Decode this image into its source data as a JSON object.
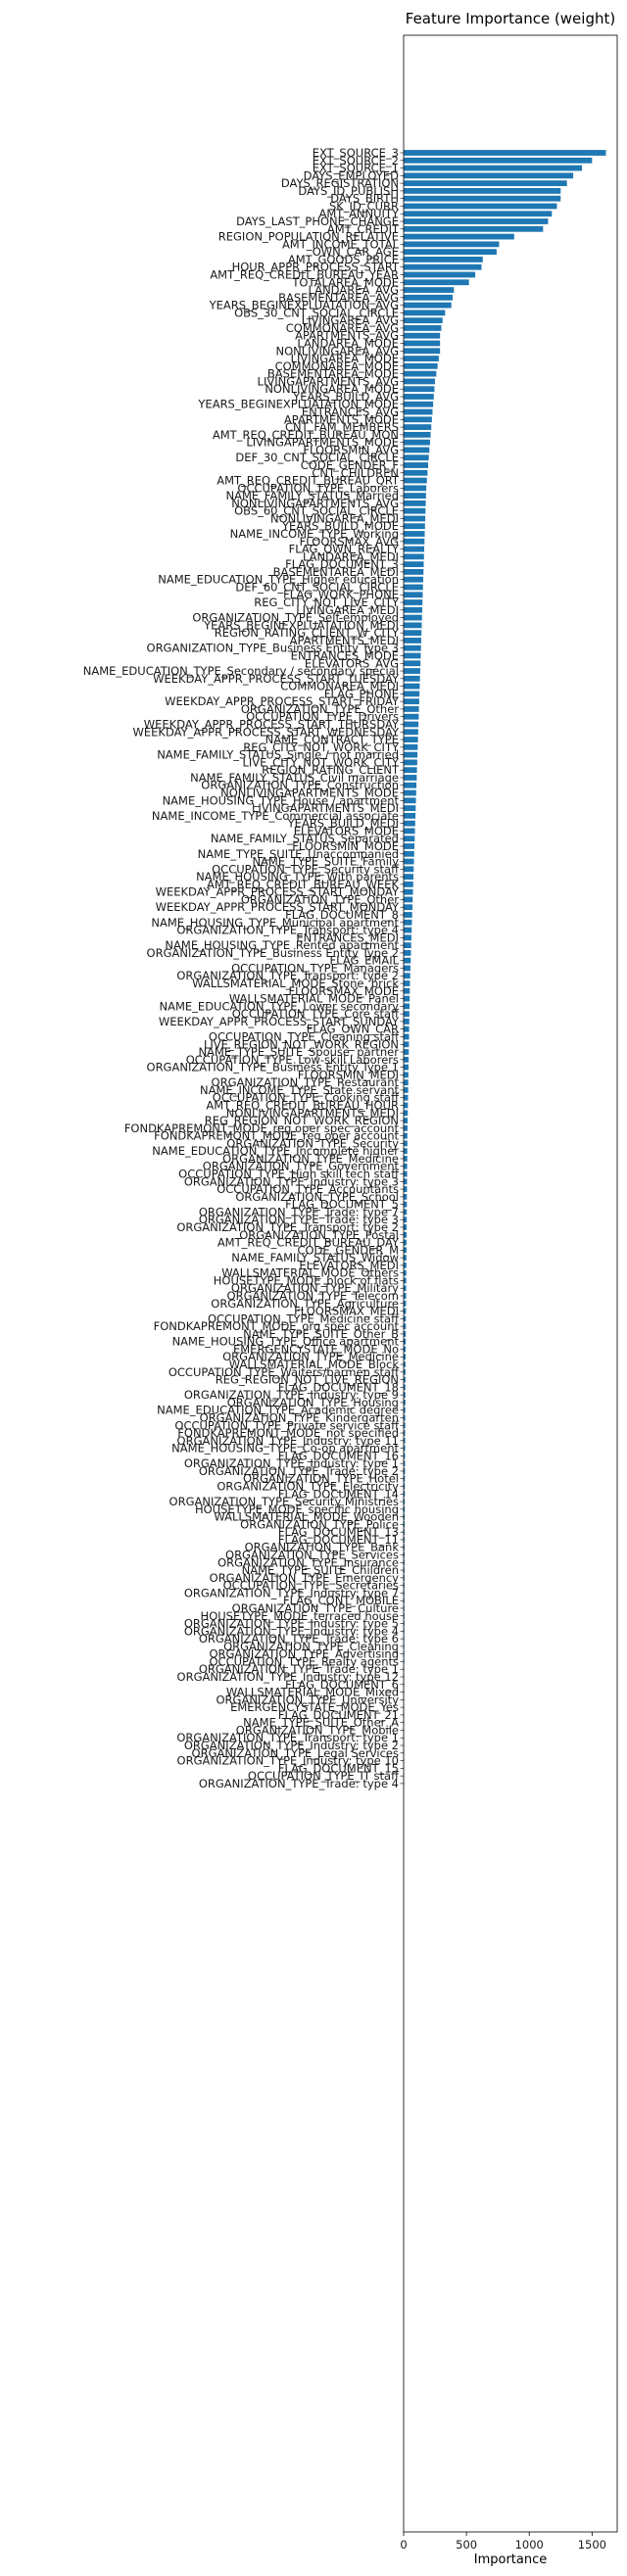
{
  "chart_data": {
    "type": "bar",
    "orientation": "horizontal",
    "title": "Feature Importance (weight)",
    "xlabel": "Importance",
    "ylabel": "",
    "xlim": [
      0,
      1700
    ],
    "xticks": [
      0,
      500,
      1000,
      1500
    ],
    "grid": false,
    "legend": "none",
    "bar_color": "#1f77b4",
    "categories": [
      "EXT_SOURCE_3",
      "EXT_SOURCE_2",
      "EXT_SOURCE_1",
      "DAYS_EMPLOYED",
      "DAYS_REGISTRATION",
      "DAYS_ID_PUBLISH",
      "DAYS_BIRTH",
      "SK_ID_CURR",
      "AMT_ANNUITY",
      "DAYS_LAST_PHONE_CHANGE",
      "AMT_CREDIT",
      "REGION_POPULATION_RELATIVE",
      "AMT_INCOME_TOTAL",
      "OWN_CAR_AGE",
      "AMT_GOODS_PRICE",
      "HOUR_APPR_PROCESS_START",
      "AMT_REQ_CREDIT_BUREAU_YEAR",
      "TOTALAREA_MODE",
      "LANDAREA_AVG",
      "BASEMENTAREA_AVG",
      "YEARS_BEGINEXPLUATATION_AVG",
      "OBS_30_CNT_SOCIAL_CIRCLE",
      "LIVINGAREA_AVG",
      "COMMONAREA_AVG",
      "APARTMENTS_AVG",
      "LANDAREA_MODE",
      "NONLIVINGAREA_AVG",
      "LIVINGAREA_MODE",
      "COMMONAREA_MODE",
      "BASEMENTAREA_MODE",
      "LIVINGAPARTMENTS_AVG",
      "NONLIVINGAREA_MODE",
      "YEARS_BUILD_AVG",
      "YEARS_BEGINEXPLUATATION_MODE",
      "ENTRANCES_AVG",
      "APARTMENTS_MODE",
      "CNT_FAM_MEMBERS",
      "AMT_REQ_CREDIT_BUREAU_MON",
      "LIVINGAPARTMENTS_MODE",
      "FLOORSMIN_AVG",
      "DEF_30_CNT_SOCIAL_CIRCLE",
      "CODE_GENDER_F",
      "CNT_CHILDREN",
      "AMT_REQ_CREDIT_BUREAU_QRT",
      "OCCUPATION_TYPE_Laborers",
      "NAME_FAMILY_STATUS_Married",
      "NONLIVINGAPARTMENTS_AVG",
      "OBS_60_CNT_SOCIAL_CIRCLE",
      "NONLIVINGAREA_MEDI",
      "YEARS_BUILD_MODE",
      "NAME_INCOME_TYPE_Working",
      "FLOORSMAX_AVG",
      "FLAG_OWN_REALTY",
      "LANDAREA_MEDI",
      "FLAG_DOCUMENT_3",
      "BASEMENTAREA_MEDI",
      "NAME_EDUCATION_TYPE_Higher education",
      "DEF_60_CNT_SOCIAL_CIRCLE",
      "FLAG_WORK_PHONE",
      "REG_CITY_NOT_LIVE_CITY",
      "LIVINGAREA_MEDI",
      "ORGANIZATION_TYPE_Self-employed",
      "YEARS_BEGINEXPLUATATION_MEDI",
      "REGION_RATING_CLIENT_W_CITY",
      "APARTMENTS_MEDI",
      "ORGANIZATION_TYPE_Business Entity Type 3",
      "ENTRANCES_MODE",
      "ELEVATORS_AVG",
      "NAME_EDUCATION_TYPE_Secondary / secondary special",
      "WEEKDAY_APPR_PROCESS_START_TUESDAY",
      "COMMONAREA_MEDI",
      "FLAG_PHONE",
      "WEEKDAY_APPR_PROCESS_START_FRIDAY",
      "ORGANIZATION_TYPE_Other",
      "OCCUPATION_TYPE_Drivers",
      "WEEKDAY_APPR_PROCESS_START_THURSDAY",
      "WEEKDAY_APPR_PROCESS_START_WEDNESDAY",
      "NAME_CONTRACT_TYPE",
      "REG_CITY_NOT_WORK_CITY",
      "NAME_FAMILY_STATUS_Single / not married",
      "LIVE_CITY_NOT_WORK_CITY",
      "REGION_RATING_CLIENT",
      "NAME_FAMILY_STATUS_Civil marriage",
      "ORGANIZATION_TYPE_Construction",
      "NONLIVINGAPARTMENTS_MODE",
      "NAME_HOUSING_TYPE_House / apartment",
      "LIVINGAPARTMENTS_MEDI",
      "NAME_INCOME_TYPE_Commercial associate",
      "YEARS_BUILD_MEDI",
      "ELEVATORS_MODE",
      "NAME_FAMILY_STATUS_Separated",
      "FLOORSMIN_MODE",
      "NAME_TYPE_SUITE_Unaccompanied",
      "NAME_TYPE_SUITE_Family",
      "OCCUPATION_TYPE_Security staff",
      "NAME_HOUSING_TYPE_With parents",
      "AMT_REQ_CREDIT_BUREAU_WEEK",
      "WEEKDAY_APPR_PROCESS_START_MONDAY",
      "ORGANIZATION_TYPE_Other",
      "WEEKDAY_APPR_PROCESS_START_MONDAY",
      "FLAG_DOCUMENT_8",
      "NAME_HOUSING_TYPE_Municipal apartment",
      "ORGANIZATION_TYPE_Transport: type 4",
      "ENTRANCES_MEDI",
      "NAME_HOUSING_TYPE_Rented apartment",
      "ORGANIZATION_TYPE_Business Entity Type 2",
      "FLAG_EMAIL",
      "OCCUPATION_TYPE_Managers",
      "ORGANIZATION_TYPE_Transport: type 2",
      "WALLSMATERIAL_MODE_Stone, brick",
      "FLOORSMAX_MODE",
      "WALLSMATERIAL_MODE_Panel",
      "NAME_EDUCATION_TYPE_Lower secondary",
      "OCCUPATION_TYPE_Core staff",
      "WEEKDAY_APPR_PROCESS_START_SUNDAY",
      "FLAG_OWN_CAR",
      "OCCUPATION_TYPE_Cleaning staff",
      "LIVE_REGION_NOT_WORK_REGION",
      "NAME_TYPE_SUITE_Spouse, partner",
      "OCCUPATION_TYPE_Low-skill Laborers",
      "ORGANIZATION_TYPE_Business Entity Type 1",
      "FLOORSMIN_MEDI",
      "ORGANIZATION_TYPE_Restaurant",
      "NAME_INCOME_TYPE_State servant",
      "OCCUPATION_TYPE_Cooking staff",
      "AMT_REQ_CREDIT_BUREAU_HOUR",
      "NONLIVINGAPARTMENTS_MEDI",
      "REG_REGION_NOT_WORK_REGION",
      "FONDKAPREMONT_MODE_reg oper spec account",
      "FONDKAPREMONT_MODE_reg oper account",
      "ORGANIZATION_TYPE_Security",
      "NAME_EDUCATION_TYPE_Incomplete higher",
      "ORGANIZATION_TYPE_Medicine",
      "ORGANIZATION_TYPE_Government",
      "OCCUPATION_TYPE_High skill tech staff",
      "ORGANIZATION_TYPE_Industry: type 3",
      "OCCUPATION_TYPE_Accountants",
      "ORGANIZATION_TYPE_School",
      "FLAG_DOCUMENT_5",
      "ORGANIZATION_TYPE_Trade: type 7",
      "ORGANIZATION_TYPE_Trade: type 3",
      "ORGANIZATION_TYPE_Transport: type 2",
      "ORGANIZATION_TYPE_Postal",
      "AMT_REQ_CREDIT_BUREAU_DAY",
      "CODE_GENDER_M",
      "NAME_FAMILY_STATUS_Widow",
      "ELEVATORS_MEDI",
      "WALLSMATERIAL_MODE_Others",
      "HOUSETYPE_MODE_block of flats",
      "ORGANIZATION_TYPE_Military",
      "ORGANIZATION_TYPE_Telecom",
      "ORGANIZATION_TYPE_Agriculture",
      "FLOORSMAX_MEDI",
      "OCCUPATION_TYPE_Medicine staff",
      "FONDKAPREMONT_MODE_org spec account",
      "NAME_TYPE_SUITE_Other_B",
      "NAME_HOUSING_TYPE_Office apartment",
      "EMERGENCYSTATE_MODE_No",
      "ORGANIZATION_TYPE_Medicine",
      "WALLSMATERIAL_MODE_Block",
      "OCCUPATION_TYPE_Waiters/barmen staff",
      "REG_REGION_NOT_LIVE_REGION",
      "FLAG_DOCUMENT_18",
      "ORGANIZATION_TYPE_Industry: type 9",
      "ORGANIZATION_TYPE_Housing",
      "NAME_EDUCATION_TYPE_Academic degree",
      "ORGANIZATION_TYPE_Kindergarten",
      "OCCUPATION_TYPE_Private service staff",
      "FONDKAPREMONT_MODE_not specified",
      "ORGANIZATION_TYPE_Industry: type 11",
      "NAME_HOUSING_TYPE_Co-op apartment",
      "FLAG_DOCUMENT_16",
      "ORGANIZATION_TYPE_Industry: type 1",
      "ORGANIZATION_TYPE_Trade: type 2",
      "ORGANIZATION_TYPE_Hotel",
      "ORGANIZATION_TYPE_Electricity",
      "FLAG_DOCUMENT_14",
      "ORGANIZATION_TYPE_Security Ministries",
      "HOUSETYPE_MODE_specific housing",
      "WALLSMATERIAL_MODE_Wooden",
      "ORGANIZATION_TYPE_Police",
      "FLAG_DOCUMENT_13",
      "FLAG_DOCUMENT_11",
      "ORGANIZATION_TYPE_Bank",
      "ORGANIZATION_TYPE_Services",
      "ORGANIZATION_TYPE_Insurance",
      "NAME_TYPE_SUITE_Children",
      "ORGANIZATION_TYPE_Emergency",
      "OCCUPATION_TYPE_Secretaries",
      "ORGANIZATION_TYPE_Industry: type 7",
      "FLAG_CONT_MOBILE",
      "ORGANIZATION_TYPE_Culture",
      "HOUSETYPE_MODE_terraced house",
      "ORGANIZATION_TYPE_Industry: type 5",
      "ORGANIZATION_TYPE_Industry: type 4",
      "ORGANIZATION_TYPE_Trade: type 6",
      "ORGANIZATION_TYPE_Cleaning",
      "ORGANIZATION_TYPE_Advertising",
      "OCCUPATION_TYPE_Realty agents",
      "ORGANIZATION_TYPE_Trade: type 1",
      "ORGANIZATION_TYPE_Industry: type 12",
      "FLAG_DOCUMENT_6",
      "WALLSMATERIAL_MODE_Mixed",
      "ORGANIZATION_TYPE_University",
      "EMERGENCYSTATE_MODE_Yes",
      "FLAG_DOCUMENT_21",
      "NAME_TYPE_SUITE_Other_A",
      "ORGANIZATION_TYPE_Mobile",
      "ORGANIZATION_TYPE_Transport: type 1",
      "ORGANIZATION_TYPE_Industry: type 2",
      "ORGANIZATION_TYPE_Legal Services",
      "ORGANIZATION_TYPE_Industry: type 10",
      "FLAG_DOCUMENT_15",
      "OCCUPATION_TYPE_IT staff",
      "ORGANIZATION_TYPE_Trade: type 4"
    ],
    "values": [
      1610,
      1500,
      1420,
      1350,
      1300,
      1250,
      1250,
      1220,
      1180,
      1150,
      1110,
      880,
      760,
      740,
      630,
      620,
      570,
      520,
      400,
      390,
      380,
      330,
      310,
      300,
      290,
      290,
      290,
      280,
      270,
      260,
      250,
      245,
      240,
      235,
      230,
      225,
      220,
      215,
      210,
      205,
      200,
      195,
      190,
      185,
      180,
      178,
      176,
      174,
      172,
      170,
      168,
      166,
      164,
      162,
      160,
      158,
      156,
      154,
      152,
      150,
      148,
      146,
      144,
      142,
      140,
      138,
      136,
      134,
      132,
      130,
      128,
      126,
      124,
      122,
      120,
      118,
      116,
      114,
      112,
      110,
      108,
      106,
      104,
      102,
      100,
      98,
      96,
      94,
      92,
      90,
      88,
      86,
      84,
      82,
      80,
      78,
      76,
      74,
      72,
      70,
      68,
      66,
      64,
      62,
      60,
      58,
      56,
      54,
      52,
      50,
      49,
      48,
      47,
      46,
      45,
      44,
      43,
      42,
      41,
      40,
      39,
      38,
      37,
      36,
      35,
      34,
      33,
      32,
      31,
      30,
      30,
      29,
      29,
      28,
      28,
      27,
      27,
      26,
      26,
      25,
      25,
      24,
      24,
      23,
      23,
      22,
      22,
      21,
      21,
      20,
      20,
      19,
      19,
      18,
      18,
      17,
      17,
      16,
      16,
      15,
      15,
      15,
      14,
      14,
      14,
      13,
      13,
      13,
      12,
      12,
      12,
      11,
      11,
      11,
      10,
      10,
      10,
      9,
      9,
      9,
      9,
      8,
      8,
      8,
      8,
      7,
      7,
      7,
      7,
      6,
      6,
      6,
      6,
      6,
      5,
      5,
      5,
      5,
      5,
      4,
      4,
      4,
      4,
      3,
      3,
      3,
      3,
      3,
      2,
      2,
      2,
      2,
      2,
      2,
      1
    ]
  }
}
